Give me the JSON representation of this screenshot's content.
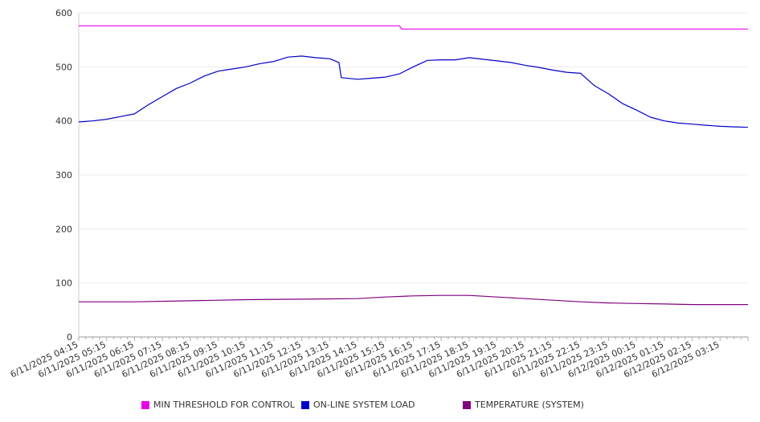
{
  "chart_data": {
    "type": "line",
    "ylim": [
      0,
      600
    ],
    "y_ticks": [
      0,
      100,
      200,
      300,
      400,
      500,
      600
    ],
    "grid": true,
    "legend_position": "bottom",
    "x_tick_labels": [
      "6/11/2025 04:15",
      "6/11/2025 05:15",
      "6/11/2025 06:15",
      "6/11/2025 07:15",
      "6/11/2025 08:15",
      "6/11/2025 09:15",
      "6/11/2025 10:15",
      "6/11/2025 11:15",
      "6/11/2025 12:15",
      "6/11/2025 13:15",
      "6/11/2025 14:15",
      "6/11/2025 15:15",
      "6/11/2025 16:15",
      "6/11/2025 17:15",
      "6/11/2025 18:15",
      "6/11/2025 19:15",
      "6/11/2025 20:15",
      "6/11/2025 21:15",
      "6/11/2025 22:15",
      "6/11/2025 23:15",
      "6/12/2025 00:15",
      "6/12/2025 01:15",
      "6/12/2025 02:15",
      "6/12/2025 03:15"
    ],
    "series": [
      {
        "name": "MIN THRESHOLD FOR CONTROL",
        "color": "#e600e6",
        "points": [
          [
            "6/11/2025 04:15",
            576
          ],
          [
            "6/11/2025 08:15",
            576
          ],
          [
            "6/11/2025 12:15",
            576
          ],
          [
            "6/11/2025 15:45",
            576
          ],
          [
            "6/11/2025 15:50",
            570
          ],
          [
            "6/11/2025 20:15",
            570
          ],
          [
            "6/12/2025 04:15",
            570
          ]
        ]
      },
      {
        "name": "ON-LINE SYSTEM LOAD",
        "color": "#0000cc",
        "points": [
          [
            "6/11/2025 04:15",
            398
          ],
          [
            "6/11/2025 04:45",
            400
          ],
          [
            "6/11/2025 05:15",
            403
          ],
          [
            "6/11/2025 05:45",
            408
          ],
          [
            "6/11/2025 06:15",
            413
          ],
          [
            "6/11/2025 06:45",
            430
          ],
          [
            "6/11/2025 07:15",
            445
          ],
          [
            "6/11/2025 07:45",
            460
          ],
          [
            "6/11/2025 08:15",
            470
          ],
          [
            "6/11/2025 08:45",
            483
          ],
          [
            "6/11/2025 09:15",
            492
          ],
          [
            "6/11/2025 09:45",
            496
          ],
          [
            "6/11/2025 10:15",
            500
          ],
          [
            "6/11/2025 10:45",
            506
          ],
          [
            "6/11/2025 11:15",
            510
          ],
          [
            "6/11/2025 11:45",
            518
          ],
          [
            "6/11/2025 12:15",
            520
          ],
          [
            "6/11/2025 12:45",
            517
          ],
          [
            "6/11/2025 13:15",
            515
          ],
          [
            "6/11/2025 13:35",
            508
          ],
          [
            "6/11/2025 13:40",
            480
          ],
          [
            "6/11/2025 14:15",
            477
          ],
          [
            "6/11/2025 14:45",
            479
          ],
          [
            "6/11/2025 15:15",
            481
          ],
          [
            "6/11/2025 15:45",
            487
          ],
          [
            "6/11/2025 16:15",
            500
          ],
          [
            "6/11/2025 16:45",
            512
          ],
          [
            "6/11/2025 17:15",
            513
          ],
          [
            "6/11/2025 17:45",
            513
          ],
          [
            "6/11/2025 18:15",
            517
          ],
          [
            "6/11/2025 18:45",
            514
          ],
          [
            "6/11/2025 19:15",
            511
          ],
          [
            "6/11/2025 19:45",
            508
          ],
          [
            "6/11/2025 20:15",
            503
          ],
          [
            "6/11/2025 20:45",
            499
          ],
          [
            "6/11/2025 21:15",
            494
          ],
          [
            "6/11/2025 21:45",
            490
          ],
          [
            "6/11/2025 22:15",
            488
          ],
          [
            "6/11/2025 22:45",
            465
          ],
          [
            "6/11/2025 23:15",
            450
          ],
          [
            "6/11/2025 23:45",
            432
          ],
          [
            "6/12/2025 00:15",
            420
          ],
          [
            "6/12/2025 00:45",
            407
          ],
          [
            "6/12/2025 01:15",
            400
          ],
          [
            "6/12/2025 01:45",
            396
          ],
          [
            "6/12/2025 02:15",
            394
          ],
          [
            "6/12/2025 02:45",
            392
          ],
          [
            "6/12/2025 03:15",
            390
          ],
          [
            "6/12/2025 03:45",
            389
          ],
          [
            "6/12/2025 04:15",
            388
          ]
        ]
      },
      {
        "name": "TEMPERATURE (SYSTEM)",
        "color": "#800080",
        "points": [
          [
            "6/11/2025 04:15",
            65
          ],
          [
            "6/11/2025 06:15",
            65
          ],
          [
            "6/11/2025 08:15",
            67
          ],
          [
            "6/11/2025 10:15",
            69
          ],
          [
            "6/11/2025 12:15",
            70
          ],
          [
            "6/11/2025 14:15",
            71
          ],
          [
            "6/11/2025 15:15",
            74
          ],
          [
            "6/11/2025 16:15",
            76
          ],
          [
            "6/11/2025 17:15",
            77
          ],
          [
            "6/11/2025 18:15",
            77
          ],
          [
            "6/11/2025 19:15",
            74
          ],
          [
            "6/11/2025 20:15",
            71
          ],
          [
            "6/11/2025 21:15",
            68
          ],
          [
            "6/11/2025 22:15",
            65
          ],
          [
            "6/11/2025 23:15",
            63
          ],
          [
            "6/12/2025 00:15",
            62
          ],
          [
            "6/12/2025 01:15",
            61
          ],
          [
            "6/12/2025 02:15",
            60
          ],
          [
            "6/12/2025 03:15",
            60
          ],
          [
            "6/12/2025 04:15",
            60
          ]
        ]
      }
    ]
  }
}
